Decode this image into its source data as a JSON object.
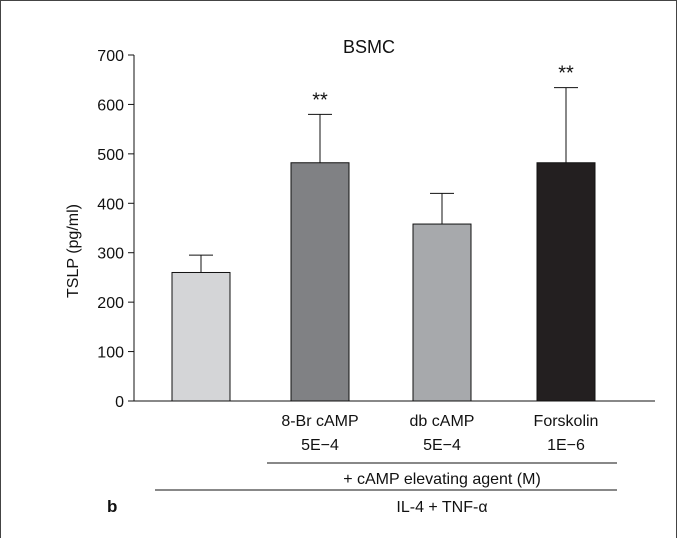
{
  "panel_label": "b",
  "chart_data": {
    "type": "bar",
    "title": "BSMC",
    "ylabel": "TSLP (pg/ml)",
    "xlabel": "",
    "ylim": [
      0,
      700
    ],
    "yticks": [
      0,
      100,
      200,
      300,
      400,
      500,
      600,
      700
    ],
    "grid": false,
    "bars": [
      {
        "label_line1": "",
        "label_line2": "",
        "value": 260,
        "error": 35,
        "color": "#d4d5d7",
        "significance": ""
      },
      {
        "label_line1": "8-Br cAMP",
        "label_line2": "5E−4",
        "value": 482,
        "error": 98,
        "color": "#808184",
        "significance": "**"
      },
      {
        "label_line1": "db cAMP",
        "label_line2": "5E−4",
        "value": 358,
        "error": 62,
        "color": "#a7a9ac",
        "significance": ""
      },
      {
        "label_line1": "Forskolin",
        "label_line2": "1E−6",
        "value": 482,
        "error": 152,
        "color": "#231f20",
        "significance": "**"
      }
    ],
    "group_labels": {
      "inner": "+ cAMP elevating agent (M)",
      "outer": "IL-4 + TNF-α"
    }
  }
}
